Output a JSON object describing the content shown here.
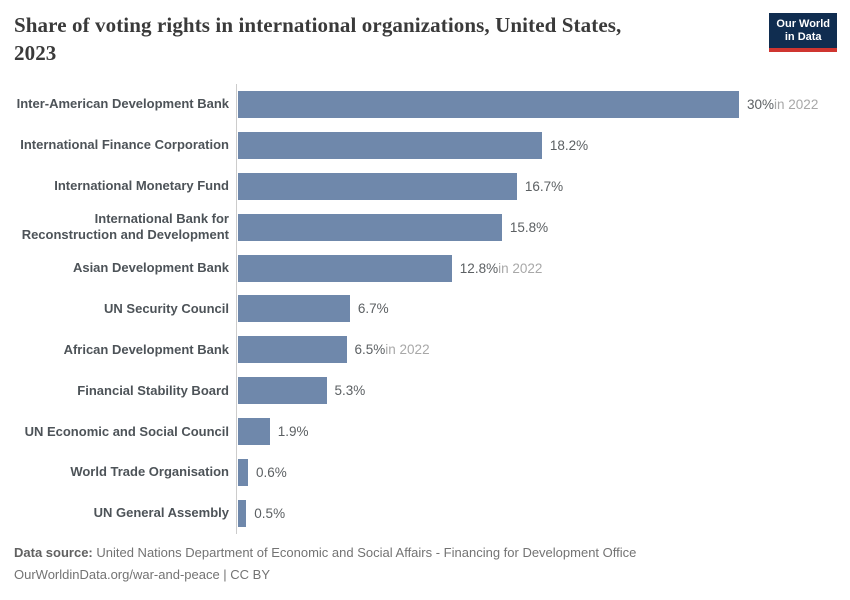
{
  "header": {
    "title_lines": [
      "Share of voting rights in international organizations, United States,",
      "2023"
    ],
    "logo": {
      "line1": "Our World",
      "line2": "in Data"
    },
    "logo_colors": {
      "background": "#102d50",
      "stripe": "#cf3530",
      "text": "#ffffff"
    }
  },
  "chart_data": {
    "type": "bar",
    "orientation": "horizontal",
    "title": "Share of voting rights in international organizations, United States, 2023",
    "unit": "%",
    "xlim": [
      0,
      30
    ],
    "grid": false,
    "legend": false,
    "bar_color": "#6f88ab",
    "categories": [
      "Inter-American Development Bank",
      "International Finance Corporation",
      "International Monetary Fund",
      "International Bank for Reconstruction and Development",
      "Asian Development Bank",
      "UN Security Council",
      "African Development Bank",
      "Financial Stability Board",
      "UN Economic and Social Council",
      "World Trade Organisation",
      "UN General Assembly"
    ],
    "values": [
      30,
      18.2,
      16.7,
      15.8,
      12.8,
      6.7,
      6.5,
      5.3,
      1.9,
      0.6,
      0.5
    ],
    "value_labels": [
      "30%",
      "18.2%",
      "16.7%",
      "15.8%",
      "12.8%",
      "6.7%",
      "6.5%",
      "5.3%",
      "1.9%",
      "0.6%",
      "0.5%"
    ],
    "notes": [
      "in 2022",
      "",
      "",
      "",
      "in 2022",
      "",
      "in 2022",
      "",
      "",
      "",
      ""
    ]
  },
  "footer": {
    "source_prefix": "Data source:",
    "source_text": " United Nations Department of Economic and Social Affairs - Financing for Development Office",
    "attribution": "OurWorldinData.org/war-and-peace | CC BY"
  }
}
